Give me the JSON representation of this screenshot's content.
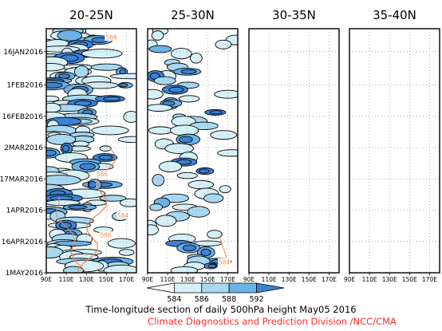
{
  "chart_data": {
    "type": "heatmap",
    "panels": [
      {
        "title": "20-25N",
        "activity": 1.0,
        "seed": 11
      },
      {
        "title": "25-30N",
        "activity": 0.55,
        "seed": 29
      },
      {
        "title": "30-35N",
        "activity": 0.12,
        "seed": 47
      },
      {
        "title": "35-40N",
        "activity": 0.0,
        "seed": 83
      }
    ],
    "x_ticks": [
      "90E",
      "110E",
      "130E",
      "150E",
      "170E"
    ],
    "xlim": [
      90,
      180
    ],
    "y_ticks": [
      "16JAN2016",
      "1FEB2016",
      "16FEB2016",
      "2MAR2016",
      "17MAR2016",
      "1APR2016",
      "16APR2016",
      "1MAY2016"
    ],
    "ylim": [
      "2016-01-05",
      "2016-05-01"
    ],
    "grid": true,
    "contour_levels": [
      584,
      586,
      588,
      592
    ],
    "contour_labels": [
      "584",
      "586",
      "584",
      "586",
      "584"
    ],
    "colorbar": {
      "levels": [
        "584",
        "586",
        "588",
        "592"
      ],
      "colors": [
        "#ffffff",
        "#d6f0f8",
        "#a8d8f0",
        "#6cb2e6",
        "#3a82d6"
      ]
    },
    "colors": {
      "contour": "#000000",
      "ridge_line": "#f08a50",
      "grid": "#8a8a8a"
    }
  },
  "footer": {
    "caption": "Time-longitude section of daily 500hPa height May05 2016",
    "credit": "Climate Diagnostics and Prediction Division /NCC/CMA"
  }
}
